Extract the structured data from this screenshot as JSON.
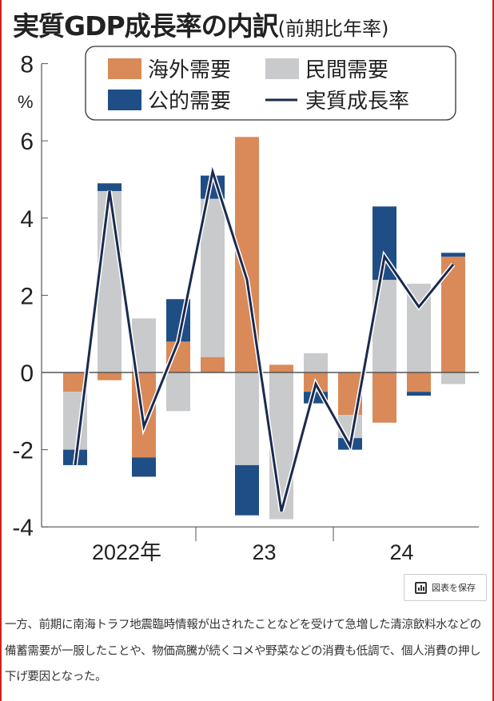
{
  "title": {
    "main": "実質GDP成長率の内訳",
    "sub": "(前期比年率)"
  },
  "chart_data": {
    "type": "bar",
    "stacked": true,
    "title": "実質GDP成長率の内訳(前期比年率)",
    "ylabel": "%",
    "ylim": [
      -4,
      8
    ],
    "yticks": [
      "-4",
      "-2",
      "0",
      "2",
      "4",
      "6",
      "8"
    ],
    "x_groups": [
      {
        "label": "2022年",
        "count": 4
      },
      {
        "label": "23",
        "count": 4
      },
      {
        "label": "24",
        "count": 4
      }
    ],
    "categories": [
      "2022Q1",
      "2022Q2",
      "2022Q3",
      "2022Q4",
      "2023Q1",
      "2023Q2",
      "2023Q3",
      "2023Q4",
      "2024Q1",
      "2024Q2",
      "2024Q3",
      "2024Q4"
    ],
    "series": [
      {
        "name": "海外需要",
        "kind": "bar",
        "color": "#D98A58",
        "values": [
          -0.5,
          -0.2,
          -2.2,
          0.8,
          0.4,
          6.1,
          0.2,
          -0.5,
          -1.1,
          -1.3,
          -0.5,
          3.0
        ]
      },
      {
        "name": "民間需要",
        "kind": "bar",
        "color": "#C9CACC",
        "values": [
          -1.5,
          4.7,
          1.4,
          -1.0,
          4.1,
          -2.4,
          -3.8,
          0.5,
          -0.6,
          2.4,
          2.3,
          -0.3
        ]
      },
      {
        "name": "公的需要",
        "kind": "bar",
        "color": "#1F4E86",
        "values": [
          -0.4,
          0.2,
          -0.5,
          1.1,
          0.6,
          -1.3,
          0.0,
          -0.3,
          -0.3,
          1.9,
          -0.1,
          0.1
        ]
      },
      {
        "name": "実質成長率",
        "kind": "line",
        "color": "#1B2A4E",
        "values": [
          -2.4,
          4.7,
          -1.4,
          0.8,
          5.2,
          2.4,
          -3.6,
          -0.3,
          -1.9,
          3.0,
          1.7,
          2.8
        ]
      }
    ],
    "legend": "top-center",
    "grid": false
  },
  "save_button": {
    "label": "図表を保存",
    "icon": "bar-chart-icon"
  },
  "body_text": "一方、前期に南海トラフ地震臨時情報が出されたことなどを受けて急増した清涼飲料水などの備蓄需要が一服したことや、物価高騰が続くコメや野菜などの消費も低調で、個人消費の押し下げ要因となった。"
}
